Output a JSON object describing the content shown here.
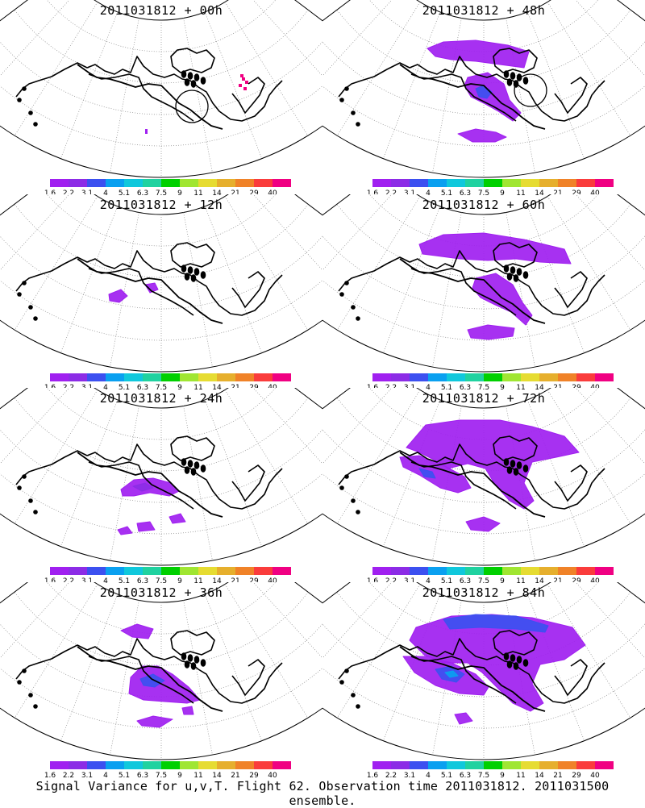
{
  "footer": "Signal Variance for u,v,T. Flight 62. Observation time 2011031812. 2011031500 ensemble.",
  "colorbar": {
    "colors": [
      "#a020f0",
      "#8c2ce6",
      "#3c50f0",
      "#0aa0f0",
      "#10c8dc",
      "#20d2a0",
      "#00d000",
      "#a0e632",
      "#e6dc32",
      "#e6af2d",
      "#f08228",
      "#fa3c3c",
      "#f00082"
    ],
    "labels": [
      "1.6",
      "2.2",
      "3.1",
      "4",
      "5.1",
      "6.3",
      "7.5",
      "9",
      "11",
      "14",
      "21",
      "29",
      "40"
    ]
  },
  "panels": [
    {
      "title": "2011031812 + 00h",
      "lead_hours": 0
    },
    {
      "title": "2011031812 + 48h",
      "lead_hours": 48
    },
    {
      "title": "2011031812 + 12h",
      "lead_hours": 12
    },
    {
      "title": "2011031812 + 60h",
      "lead_hours": 60
    },
    {
      "title": "2011031812 + 24h",
      "lead_hours": 24
    },
    {
      "title": "2011031812 + 72h",
      "lead_hours": 72
    },
    {
      "title": "2011031812 + 36h",
      "lead_hours": 36
    },
    {
      "title": "2011031812 + 84h",
      "lead_hours": 84
    }
  ]
}
